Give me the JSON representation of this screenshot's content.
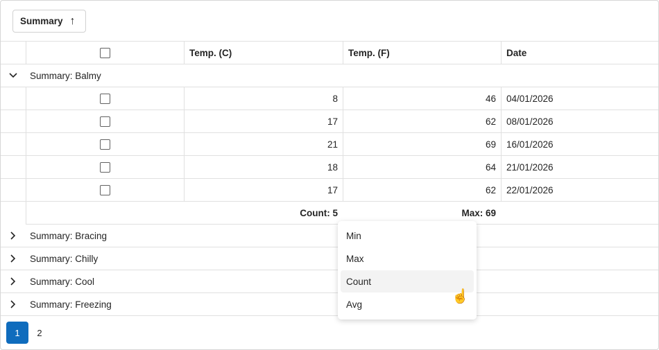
{
  "toolbar": {
    "group_chip": "Summary",
    "sort_icon": "arrow-up-icon"
  },
  "columns": [
    "",
    "Temp. (C)",
    "Temp. (F)",
    "Date"
  ],
  "groups": [
    {
      "label": "Summary: Balmy",
      "expanded": true,
      "rows": [
        {
          "c": "8",
          "f": "46",
          "date": "04/01/2026"
        },
        {
          "c": "17",
          "f": "62",
          "date": "08/01/2026"
        },
        {
          "c": "21",
          "f": "69",
          "date": "16/01/2026"
        },
        {
          "c": "18",
          "f": "64",
          "date": "21/01/2026"
        },
        {
          "c": "17",
          "f": "62",
          "date": "22/01/2026"
        }
      ],
      "footer": {
        "c": "Count: 5",
        "f": "Max: 69"
      }
    },
    {
      "label": "Summary: Bracing",
      "expanded": false
    },
    {
      "label": "Summary: Chilly",
      "expanded": false
    },
    {
      "label": "Summary: Cool",
      "expanded": false
    },
    {
      "label": "Summary: Freezing",
      "expanded": false
    }
  ],
  "pager": {
    "pages": [
      "1",
      "2"
    ],
    "current": "1"
  },
  "aggregate_menu": {
    "items": [
      "Min",
      "Max",
      "Count",
      "Avg"
    ],
    "hovered": "Count"
  },
  "colors": {
    "accent": "#0f6cbd"
  }
}
